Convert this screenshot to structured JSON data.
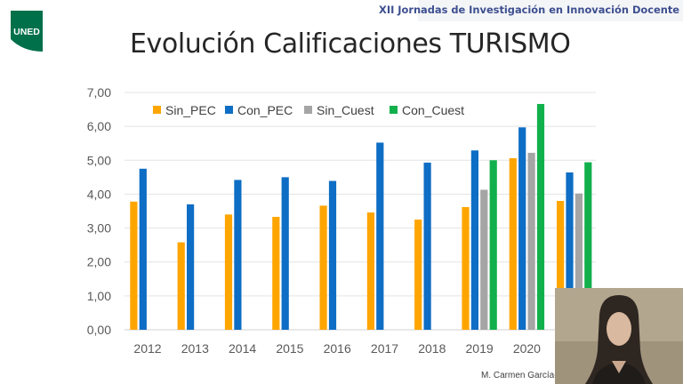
{
  "header": {
    "conference": "XII Jornadas de Investigación en Innovación Docente"
  },
  "logo": {
    "text": "UNED",
    "icon": "uned-logo-icon",
    "color": "#00704a"
  },
  "slide": {
    "title": "Evolución Calificaciones TURISMO"
  },
  "footer": {
    "author": "M. Carmen García-Lla"
  },
  "webcam": {
    "icon": "presenter-video-icon"
  },
  "chart_data": {
    "type": "bar",
    "title": "",
    "xlabel": "",
    "ylabel": "",
    "ylim": [
      0,
      7
    ],
    "yticks": [
      "0,00",
      "1,00",
      "2,00",
      "3,00",
      "4,00",
      "5,00",
      "6,00",
      "7,00"
    ],
    "grid": true,
    "legend_position": "top",
    "categories": [
      "2012",
      "2013",
      "2014",
      "2015",
      "2016",
      "2017",
      "2018",
      "2019",
      "2020",
      ""
    ],
    "series": [
      {
        "name": "Sin_PEC",
        "color": "#ffa500",
        "values": [
          3.78,
          2.58,
          3.4,
          3.33,
          3.66,
          3.46,
          3.25,
          3.62,
          5.06,
          3.8
        ]
      },
      {
        "name": "Con_PEC",
        "color": "#0e6dc4",
        "values": [
          4.75,
          3.7,
          4.42,
          4.5,
          4.39,
          5.52,
          4.93,
          5.29,
          5.97,
          4.64
        ]
      },
      {
        "name": "Sin_Cuest",
        "color": "#a5a5a5",
        "values": [
          null,
          null,
          null,
          null,
          null,
          null,
          null,
          4.13,
          5.22,
          4.02
        ]
      },
      {
        "name": "Con_Cuest",
        "color": "#12b04c",
        "values": [
          null,
          null,
          null,
          null,
          null,
          null,
          null,
          5.0,
          6.66,
          4.94
        ]
      }
    ]
  }
}
